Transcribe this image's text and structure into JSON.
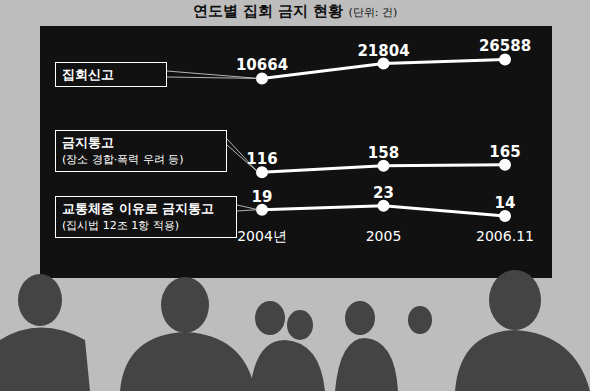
{
  "chart_data": {
    "type": "line",
    "title": "연도별 집회 금지 현황",
    "subtitle": "(단위: 건)",
    "categories": [
      "2004년",
      "2005",
      "2006.11"
    ],
    "series": [
      {
        "name": "집회신고",
        "color": "#ffffff",
        "values": [
          10664,
          21804,
          26588
        ]
      },
      {
        "name": "금지통고\n(장소 경합·폭력 우려 등)",
        "color": "#ffffff",
        "values": [
          116,
          158,
          165
        ]
      },
      {
        "name": "교통체증 이유로 금지통고\n(집시법 12조 1항 적용)",
        "color": "#ffffff",
        "values": [
          19,
          23,
          14
        ]
      }
    ],
    "ylim": [
      10,
      100000
    ],
    "log": "y",
    "grid": false,
    "tick_labels": "x",
    "data_labels": true,
    "marker": "circle"
  }
}
